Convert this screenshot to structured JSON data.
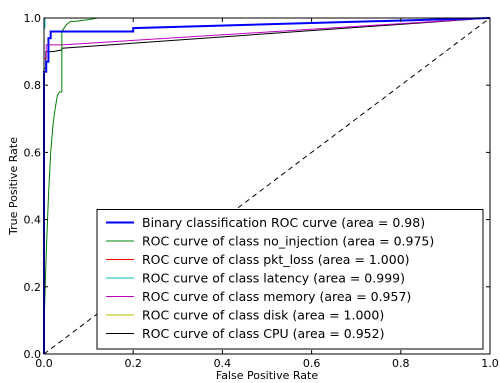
{
  "chart_data": {
    "type": "line",
    "xlabel": "False Positive Rate",
    "ylabel": "True Positive Rate",
    "xlim": [
      0.0,
      1.0
    ],
    "ylim": [
      0.0,
      1.0
    ],
    "x_ticks": [
      "0.0",
      "0.2",
      "0.4",
      "0.6",
      "0.8",
      "1.0"
    ],
    "y_ticks": [
      "0.0",
      "0.2",
      "0.4",
      "0.6",
      "0.8",
      "1.0"
    ],
    "x_tick_values": [
      0.0,
      0.2,
      0.4,
      0.6,
      0.8,
      1.0
    ],
    "y_tick_values": [
      0.0,
      0.2,
      0.4,
      0.6,
      0.8,
      1.0
    ],
    "grid": false,
    "legend_position": "lower-right",
    "reference_line": {
      "style": "dashed",
      "color": "#000000",
      "x": [
        0.0,
        1.0
      ],
      "y": [
        0.0,
        1.0
      ]
    },
    "series": [
      {
        "name": "Binary classification ROC curve (area = 0.98)",
        "color": "#0000ff",
        "width": "thick",
        "x": [
          0.0,
          0.0,
          0.005,
          0.005,
          0.01,
          0.01,
          0.015,
          0.015,
          0.02,
          0.02,
          0.2,
          0.2,
          1.0
        ],
        "y": [
          0.0,
          0.84,
          0.84,
          0.87,
          0.87,
          0.94,
          0.94,
          0.96,
          0.96,
          0.96,
          0.96,
          0.97,
          1.0
        ]
      },
      {
        "name": "ROC curve of class no_injection (area = 0.975)",
        "color": "#008000",
        "width": "thin",
        "x": [
          0.0,
          0.0,
          0.005,
          0.01,
          0.015,
          0.02,
          0.025,
          0.03,
          0.035,
          0.04,
          0.04,
          0.045,
          0.05,
          0.06,
          0.07,
          0.1,
          0.12,
          0.14,
          1.0
        ],
        "y": [
          0.0,
          0.08,
          0.3,
          0.47,
          0.6,
          0.68,
          0.73,
          0.77,
          0.78,
          0.78,
          0.96,
          0.97,
          0.98,
          0.99,
          0.99,
          0.995,
          1.0,
          1.0,
          1.0
        ]
      },
      {
        "name": "ROC curve of class pkt_loss (area = 1.000)",
        "color": "#ff0000",
        "width": "thin",
        "x": [
          0.0,
          0.0,
          1.0
        ],
        "y": [
          0.0,
          1.0,
          1.0
        ]
      },
      {
        "name": "ROC curve of class latency (area = 0.999)",
        "color": "#00bfbf",
        "width": "thin",
        "x": [
          0.0,
          0.0,
          0.002,
          0.002,
          1.0
        ],
        "y": [
          0.0,
          0.97,
          0.97,
          1.0,
          1.0
        ]
      },
      {
        "name": "ROC curve of class memory (area = 0.957)",
        "color": "#bf00bf",
        "width": "thin",
        "x": [
          0.0,
          0.0,
          0.005,
          0.005,
          0.04,
          0.04,
          1.0
        ],
        "y": [
          0.0,
          0.88,
          0.88,
          0.92,
          0.92,
          0.92,
          1.0
        ]
      },
      {
        "name": "ROC curve of class disk (area = 1.000)",
        "color": "#bfbf00",
        "width": "thin",
        "x": [
          0.0,
          0.0,
          1.0
        ],
        "y": [
          0.0,
          1.0,
          1.0
        ]
      },
      {
        "name": "ROC curve of class CPU (area = 0.952)",
        "color": "#000000",
        "width": "thin",
        "x": [
          0.0,
          0.0,
          0.004,
          0.004,
          0.02,
          0.04,
          0.04,
          1.0
        ],
        "y": [
          0.0,
          0.85,
          0.85,
          0.9,
          0.9,
          0.905,
          0.91,
          1.0
        ]
      }
    ]
  }
}
